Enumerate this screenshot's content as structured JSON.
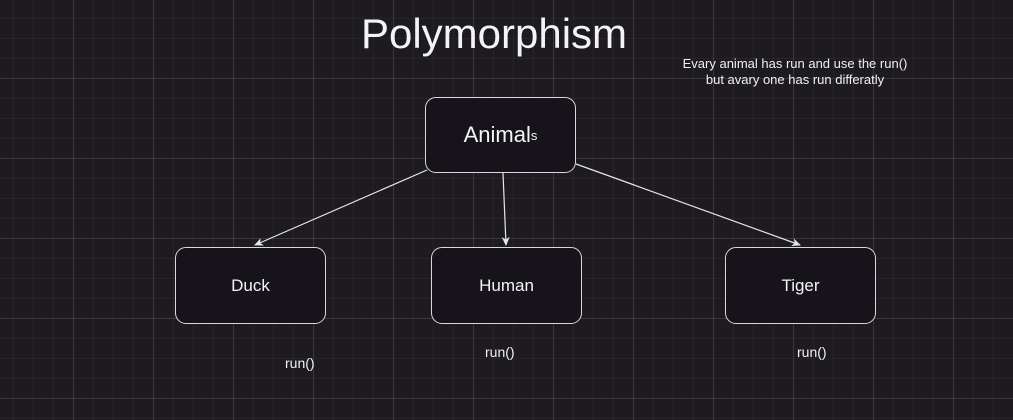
{
  "diagram": {
    "title": "Polymorphism",
    "note": {
      "line1": "Evary animal has run and use the run()",
      "line2": "but avary one has run differatly"
    },
    "root": {
      "label_main": "Animal",
      "label_suffix": "s"
    },
    "children": [
      {
        "id": "duck",
        "label": "Duck",
        "method": "run()"
      },
      {
        "id": "human",
        "label": "Human",
        "method": "run()"
      },
      {
        "id": "tiger",
        "label": "Tiger",
        "method": "run()"
      }
    ],
    "edges": [
      {
        "from": "Animals",
        "to": "Duck"
      },
      {
        "from": "Animals",
        "to": "Human"
      },
      {
        "from": "Animals",
        "to": "Tiger"
      }
    ],
    "colors": {
      "background": "#1d1b20",
      "stroke": "#d9d9d9",
      "text": "#f4f4f4"
    }
  }
}
